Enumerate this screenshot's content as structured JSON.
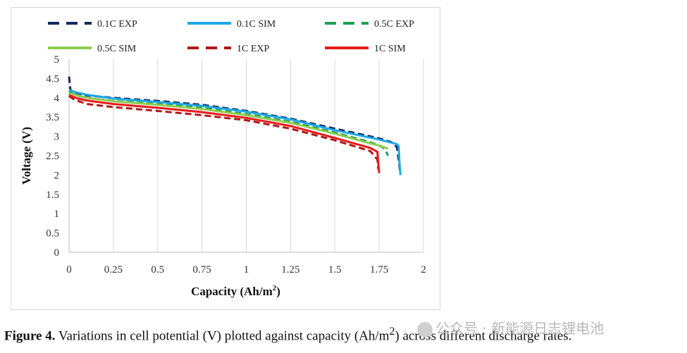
{
  "chart_data": {
    "type": "line",
    "title": "",
    "xlabel": "Capacity (Ah/m",
    "xlabel_sup": "2",
    "xlabel_end": ")",
    "ylabel": "Voltage (V)",
    "xlim": [
      0,
      2
    ],
    "ylim": [
      0,
      5
    ],
    "xticks": [
      0,
      0.25,
      0.5,
      0.75,
      1,
      1.25,
      1.5,
      1.75,
      2
    ],
    "xtick_labels": [
      "0",
      "0.25",
      "0.5",
      "0.75",
      "1",
      "1.25",
      "1.5",
      "1.75",
      "2"
    ],
    "yticks": [
      0,
      0.5,
      1,
      1.5,
      2,
      2.5,
      3,
      3.5,
      4,
      4.5,
      5
    ],
    "ytick_labels": [
      "0",
      "0.5",
      "1",
      "1.5",
      "2",
      "2.5",
      "3",
      "3.5",
      "4",
      "4.5",
      "5"
    ],
    "grid": "vertical",
    "legend_position": "top",
    "series": [
      {
        "name": "0.1C EXP",
        "color": "#14285c",
        "dash": true,
        "x": [
          0,
          0.005,
          0.01,
          0.05,
          0.1,
          0.25,
          0.5,
          0.75,
          1.0,
          1.25,
          1.5,
          1.75,
          1.82,
          1.85,
          1.86,
          1.87
        ],
        "y": [
          4.55,
          4.3,
          4.16,
          4.1,
          4.06,
          4.0,
          3.92,
          3.82,
          3.66,
          3.46,
          3.2,
          2.95,
          2.85,
          2.72,
          2.4,
          2.0
        ]
      },
      {
        "name": "0.1C SIM",
        "color": "#1ea7e8",
        "dash": false,
        "x": [
          0,
          0.05,
          0.1,
          0.25,
          0.5,
          0.75,
          1.0,
          1.25,
          1.5,
          1.75,
          1.85,
          1.86,
          1.865,
          1.87
        ],
        "y": [
          4.2,
          4.13,
          4.08,
          3.98,
          3.89,
          3.79,
          3.64,
          3.44,
          3.16,
          2.92,
          2.8,
          2.75,
          2.3,
          2.0
        ]
      },
      {
        "name": "0.5C EXP",
        "color": "#20a050",
        "dash": true,
        "x": [
          0,
          0.05,
          0.1,
          0.25,
          0.5,
          0.75,
          1.0,
          1.25,
          1.5,
          1.7,
          1.77,
          1.79,
          1.8
        ],
        "y": [
          4.15,
          4.05,
          4.0,
          3.92,
          3.84,
          3.74,
          3.58,
          3.38,
          3.1,
          2.85,
          2.72,
          2.6,
          2.5
        ]
      },
      {
        "name": "0.5C SIM",
        "color": "#8ccc50",
        "dash": false,
        "x": [
          0,
          0.05,
          0.1,
          0.25,
          0.5,
          0.75,
          1.0,
          1.25,
          1.5,
          1.7,
          1.76,
          1.79,
          1.8
        ],
        "y": [
          4.12,
          4.06,
          4.0,
          3.91,
          3.82,
          3.71,
          3.55,
          3.35,
          3.07,
          2.82,
          2.75,
          2.7,
          2.68
        ]
      },
      {
        "name": "1C EXP",
        "color": "#b01818",
        "dash": true,
        "x": [
          0,
          0.03,
          0.1,
          0.25,
          0.5,
          0.75,
          1.0,
          1.25,
          1.5,
          1.7,
          1.74,
          1.745
        ],
        "y": [
          4.05,
          3.95,
          3.84,
          3.76,
          3.66,
          3.55,
          3.42,
          3.2,
          2.9,
          2.62,
          2.4,
          2.15
        ]
      },
      {
        "name": "1C SIM",
        "color": "#e81a1a",
        "dash": false,
        "x": [
          0,
          0.05,
          0.1,
          0.25,
          0.5,
          0.75,
          1.0,
          1.25,
          1.5,
          1.7,
          1.74,
          1.745,
          1.75
        ],
        "y": [
          4.07,
          3.98,
          3.93,
          3.84,
          3.74,
          3.63,
          3.48,
          3.27,
          2.96,
          2.7,
          2.6,
          2.3,
          2.05
        ]
      }
    ]
  },
  "caption": {
    "label": "Figure 4.",
    "text": " Variations in cell potential (V) plotted against capacity (Ah/m",
    "sup": "2",
    "text_end": ") across different discharge rates."
  },
  "watermark": "公众号 · 新能源日志锂电池"
}
